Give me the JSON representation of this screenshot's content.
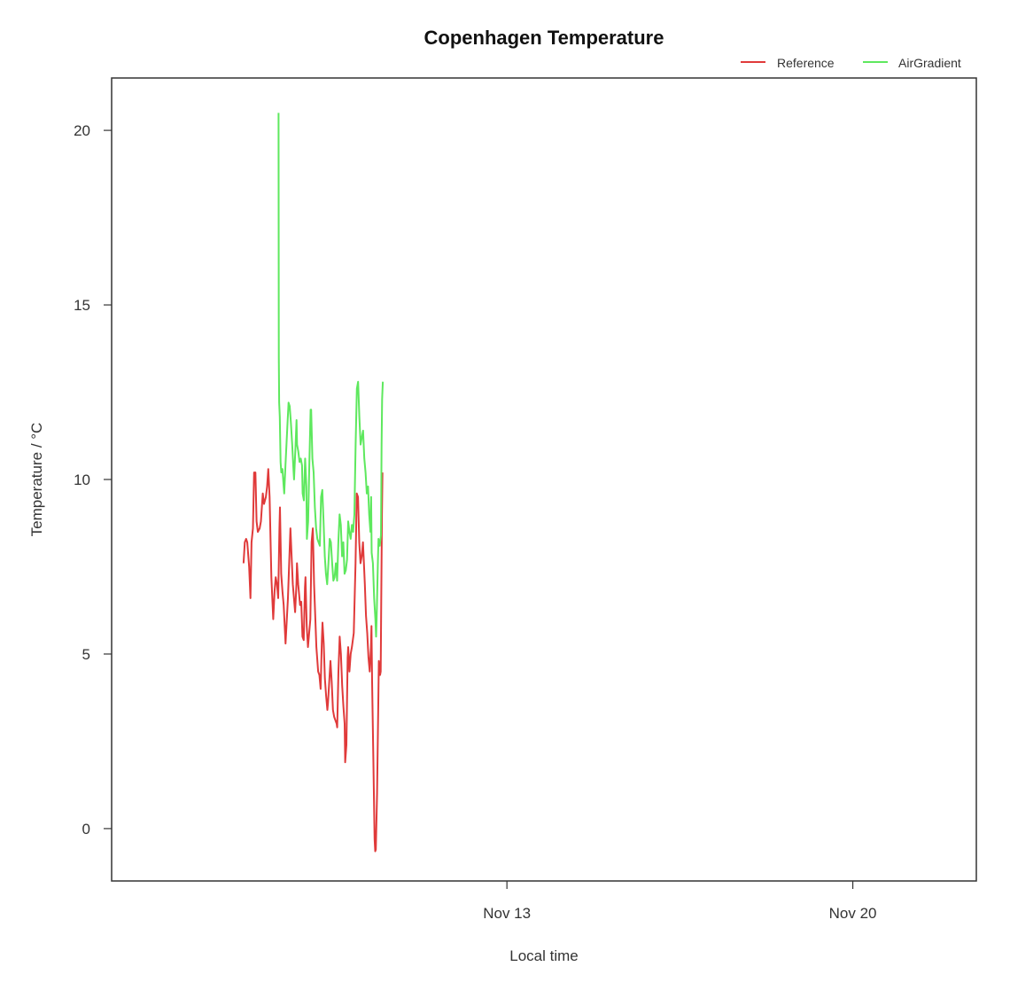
{
  "chart_data": {
    "type": "line",
    "title": "Copenhagen Temperature",
    "xlabel": "Local time",
    "ylabel": "Temperature / °C",
    "x_unit": "days",
    "x_range": [
      "2023-11-05T00:00",
      "2023-11-22T12:00"
    ],
    "ylim": [
      -1.5,
      21.5
    ],
    "yticks": [
      0,
      5,
      10,
      15,
      20
    ],
    "xticks": [
      {
        "label": "Nov 13",
        "x": "2023-11-13T00:00"
      },
      {
        "label": "Nov 20",
        "x": "2023-11-20T00:00"
      }
    ],
    "legend": {
      "position": "top-right"
    },
    "series": [
      {
        "name": "Reference",
        "color": "#e03a3a",
        "points": [
          [
            "2023-11-07T16:05",
            7.6
          ],
          [
            "2023-11-07T16:41",
            8.2
          ],
          [
            "2023-11-07T17:19",
            8.3
          ],
          [
            "2023-11-07T17:53",
            8.2
          ],
          [
            "2023-11-07T18:48",
            7.5
          ],
          [
            "2023-11-07T19:26",
            6.6
          ],
          [
            "2023-11-07T19:58",
            8.2
          ],
          [
            "2023-11-07T20:37",
            8.6
          ],
          [
            "2023-11-07T21:12",
            10.2
          ],
          [
            "2023-11-07T21:50",
            10.2
          ],
          [
            "2023-11-07T22:24",
            8.8
          ],
          [
            "2023-11-07T23:01",
            8.5
          ],
          [
            "2023-11-07T23:55",
            8.6
          ],
          [
            "2023-11-08T00:31",
            8.8
          ],
          [
            "2023-11-08T01:26",
            9.6
          ],
          [
            "2023-11-08T02:00",
            9.3
          ],
          [
            "2023-11-08T02:55",
            9.5
          ],
          [
            "2023-11-08T03:31",
            9.8
          ],
          [
            "2023-11-08T04:05",
            10.3
          ],
          [
            "2023-11-08T04:43",
            9.5
          ],
          [
            "2023-11-08T05:36",
            7.2
          ],
          [
            "2023-11-08T06:29",
            6.0
          ],
          [
            "2023-11-08T07:07",
            6.8
          ],
          [
            "2023-11-08T07:41",
            7.2
          ],
          [
            "2023-11-08T08:17",
            7.0
          ],
          [
            "2023-11-08T08:53",
            6.6
          ],
          [
            "2023-11-08T09:29",
            8.6
          ],
          [
            "2023-11-08T09:46",
            9.2
          ],
          [
            "2023-11-08T10:22",
            7.3
          ],
          [
            "2023-11-08T10:58",
            6.8
          ],
          [
            "2023-11-08T11:34",
            6.4
          ],
          [
            "2023-11-08T12:29",
            5.3
          ],
          [
            "2023-11-08T13:38",
            6.6
          ],
          [
            "2023-11-08T14:50",
            8.6
          ],
          [
            "2023-11-08T16:00",
            7.0
          ],
          [
            "2023-11-08T17:07",
            6.2
          ],
          [
            "2023-11-08T17:46",
            7.0
          ],
          [
            "2023-11-08T18:02",
            7.6
          ],
          [
            "2023-11-08T18:38",
            7.0
          ],
          [
            "2023-11-08T19:31",
            6.4
          ],
          [
            "2023-11-08T20:05",
            6.5
          ],
          [
            "2023-11-08T20:41",
            5.5
          ],
          [
            "2023-11-08T21:17",
            5.4
          ],
          [
            "2023-11-08T21:53",
            6.9
          ],
          [
            "2023-11-08T22:10",
            7.2
          ],
          [
            "2023-11-08T22:46",
            5.8
          ],
          [
            "2023-11-08T23:22",
            5.2
          ],
          [
            "2023-11-09T00:31",
            6.0
          ],
          [
            "2023-11-09T01:07",
            8.2
          ],
          [
            "2023-11-09T01:43",
            8.6
          ],
          [
            "2023-11-09T02:19",
            7.0
          ],
          [
            "2023-11-09T03:26",
            5.2
          ],
          [
            "2023-11-09T04:19",
            4.5
          ],
          [
            "2023-11-09T04:55",
            4.4
          ],
          [
            "2023-11-09T05:31",
            4.0
          ],
          [
            "2023-11-09T06:07",
            5.4
          ],
          [
            "2023-11-09T06:24",
            5.9
          ],
          [
            "2023-11-09T07:00",
            5.3
          ],
          [
            "2023-11-09T07:36",
            4.3
          ],
          [
            "2023-11-09T08:12",
            3.8
          ],
          [
            "2023-11-09T08:48",
            3.4
          ],
          [
            "2023-11-09T09:05",
            3.6
          ],
          [
            "2023-11-09T09:41",
            4.2
          ],
          [
            "2023-11-09T10:17",
            4.8
          ],
          [
            "2023-11-09T10:53",
            4.2
          ],
          [
            "2023-11-09T11:29",
            3.4
          ],
          [
            "2023-11-09T12:05",
            3.2
          ],
          [
            "2023-11-09T12:41",
            3.1
          ],
          [
            "2023-11-09T13:17",
            3.0
          ],
          [
            "2023-11-09T13:34",
            2.9
          ],
          [
            "2023-11-09T14:10",
            4.5
          ],
          [
            "2023-11-09T14:46",
            5.5
          ],
          [
            "2023-11-09T15:22",
            5.0
          ],
          [
            "2023-11-09T15:58",
            4.1
          ],
          [
            "2023-11-09T16:34",
            3.5
          ],
          [
            "2023-11-09T17:10",
            3.0
          ],
          [
            "2023-11-09T17:26",
            1.9
          ],
          [
            "2023-11-09T18:02",
            2.4
          ],
          [
            "2023-11-09T18:38",
            4.9
          ],
          [
            "2023-11-09T18:55",
            5.2
          ],
          [
            "2023-11-09T19:31",
            4.5
          ],
          [
            "2023-11-09T20:07",
            5.0
          ],
          [
            "2023-11-09T20:43",
            5.2
          ],
          [
            "2023-11-09T21:36",
            5.6
          ],
          [
            "2023-11-09T22:29",
            7.6
          ],
          [
            "2023-11-09T23:05",
            9.6
          ],
          [
            "2023-11-09T23:41",
            9.5
          ],
          [
            "2023-11-10T00:17",
            8.2
          ],
          [
            "2023-11-10T00:53",
            7.6
          ],
          [
            "2023-11-10T01:29",
            7.8
          ],
          [
            "2023-11-10T02:05",
            8.2
          ],
          [
            "2023-11-10T02:22",
            7.8
          ],
          [
            "2023-11-10T02:58",
            7.0
          ],
          [
            "2023-11-10T03:34",
            6.1
          ],
          [
            "2023-11-10T04:10",
            5.6
          ],
          [
            "2023-11-10T04:46",
            4.9
          ],
          [
            "2023-11-10T05:22",
            4.5
          ],
          [
            "2023-11-10T05:58",
            5.2
          ],
          [
            "2023-11-10T06:14",
            5.8
          ],
          [
            "2023-11-10T06:31",
            4.2
          ],
          [
            "2023-11-10T07:07",
            2.0
          ],
          [
            "2023-11-10T07:43",
            -0.3
          ],
          [
            "2023-11-10T08:02",
            -0.65
          ],
          [
            "2023-11-10T08:19",
            -0.6
          ],
          [
            "2023-11-10T08:55",
            1.0
          ],
          [
            "2023-11-10T09:31",
            3.6
          ],
          [
            "2023-11-10T09:48",
            4.8
          ],
          [
            "2023-11-10T10:24",
            4.4
          ],
          [
            "2023-11-10T10:41",
            4.5
          ],
          [
            "2023-11-10T10:58",
            6.5
          ],
          [
            "2023-11-10T11:17",
            9.0
          ],
          [
            "2023-11-10T11:34",
            10.2
          ]
        ]
      },
      {
        "name": "AirGradient",
        "color": "#5ee85e",
        "points": [
          [
            "2023-11-08T09:05",
            20.5
          ],
          [
            "2023-11-08T09:12",
            13.5
          ],
          [
            "2023-11-08T09:22",
            12.2
          ],
          [
            "2023-11-08T09:41",
            11.8
          ],
          [
            "2023-11-08T10:05",
            10.5
          ],
          [
            "2023-11-08T10:24",
            10.2
          ],
          [
            "2023-11-08T10:58",
            10.3
          ],
          [
            "2023-11-08T11:34",
            9.8
          ],
          [
            "2023-11-08T11:50",
            9.6
          ],
          [
            "2023-11-08T12:26",
            10.4
          ],
          [
            "2023-11-08T13:19",
            11.5
          ],
          [
            "2023-11-08T13:55",
            12.2
          ],
          [
            "2023-11-08T14:31",
            12.1
          ],
          [
            "2023-11-08T15:07",
            11.6
          ],
          [
            "2023-11-08T15:43",
            11.0
          ],
          [
            "2023-11-08T16:19",
            10.3
          ],
          [
            "2023-11-08T16:36",
            10.0
          ],
          [
            "2023-11-08T17:12",
            10.8
          ],
          [
            "2023-11-08T17:48",
            11.7
          ],
          [
            "2023-11-08T18:05",
            11.0
          ],
          [
            "2023-11-08T18:41",
            10.8
          ],
          [
            "2023-11-08T19:17",
            10.5
          ],
          [
            "2023-11-08T19:53",
            10.6
          ],
          [
            "2023-11-08T20:29",
            10.4
          ],
          [
            "2023-11-08T20:46",
            9.6
          ],
          [
            "2023-11-08T21:22",
            9.4
          ],
          [
            "2023-11-08T21:58",
            10.6
          ],
          [
            "2023-11-08T22:34",
            9.8
          ],
          [
            "2023-11-08T22:50",
            8.3
          ],
          [
            "2023-11-08T23:26",
            8.8
          ],
          [
            "2023-11-09T00:02",
            10.5
          ],
          [
            "2023-11-09T00:38",
            12.0
          ],
          [
            "2023-11-09T00:55",
            12.0
          ],
          [
            "2023-11-09T01:31",
            10.6
          ],
          [
            "2023-11-09T02:07",
            10.2
          ],
          [
            "2023-11-09T02:43",
            9.2
          ],
          [
            "2023-11-09T03:19",
            8.6
          ],
          [
            "2023-11-09T03:55",
            8.3
          ],
          [
            "2023-11-09T04:31",
            8.2
          ],
          [
            "2023-11-09T05:07",
            8.1
          ],
          [
            "2023-11-09T05:43",
            9.5
          ],
          [
            "2023-11-09T06:19",
            9.7
          ],
          [
            "2023-11-09T06:55",
            8.8
          ],
          [
            "2023-11-09T07:31",
            7.8
          ],
          [
            "2023-11-09T08:07",
            7.3
          ],
          [
            "2023-11-09T08:43",
            7.0
          ],
          [
            "2023-11-09T09:19",
            7.6
          ],
          [
            "2023-11-09T09:55",
            8.3
          ],
          [
            "2023-11-09T10:31",
            8.2
          ],
          [
            "2023-11-09T11:07",
            7.6
          ],
          [
            "2023-11-09T11:43",
            7.1
          ],
          [
            "2023-11-09T12:19",
            7.2
          ],
          [
            "2023-11-09T12:55",
            7.6
          ],
          [
            "2023-11-09T13:31",
            7.1
          ],
          [
            "2023-11-09T14:07",
            8.2
          ],
          [
            "2023-11-09T14:43",
            9.0
          ],
          [
            "2023-11-09T15:19",
            8.7
          ],
          [
            "2023-11-09T15:55",
            7.8
          ],
          [
            "2023-11-09T16:31",
            8.2
          ],
          [
            "2023-11-09T17:07",
            7.3
          ],
          [
            "2023-11-09T17:43",
            7.4
          ],
          [
            "2023-11-09T18:19",
            7.7
          ],
          [
            "2023-11-09T18:55",
            8.8
          ],
          [
            "2023-11-09T19:31",
            8.5
          ],
          [
            "2023-11-09T20:07",
            8.3
          ],
          [
            "2023-11-09T20:43",
            8.7
          ],
          [
            "2023-11-09T21:19",
            8.5
          ],
          [
            "2023-11-09T21:55",
            9.0
          ],
          [
            "2023-11-09T22:31",
            11.0
          ],
          [
            "2023-11-09T23:07",
            12.6
          ],
          [
            "2023-11-09T23:43",
            12.8
          ],
          [
            "2023-11-10T00:19",
            11.8
          ],
          [
            "2023-11-10T00:55",
            11.0
          ],
          [
            "2023-11-10T01:31",
            11.2
          ],
          [
            "2023-11-10T02:07",
            11.4
          ],
          [
            "2023-11-10T02:43",
            10.6
          ],
          [
            "2023-11-10T03:19",
            10.2
          ],
          [
            "2023-11-10T03:55",
            9.6
          ],
          [
            "2023-11-10T04:31",
            9.8
          ],
          [
            "2023-11-10T05:07",
            9.0
          ],
          [
            "2023-11-10T05:43",
            8.5
          ],
          [
            "2023-11-10T06:02",
            9.5
          ],
          [
            "2023-11-10T06:19",
            7.9
          ],
          [
            "2023-11-10T06:55",
            7.6
          ],
          [
            "2023-11-10T07:31",
            6.6
          ],
          [
            "2023-11-10T08:07",
            6.0
          ],
          [
            "2023-11-10T08:26",
            5.5
          ],
          [
            "2023-11-10T08:43",
            6.0
          ],
          [
            "2023-11-10T09:19",
            7.6
          ],
          [
            "2023-11-10T09:36",
            8.3
          ],
          [
            "2023-11-10T10:12",
            8.1
          ],
          [
            "2023-11-10T10:48",
            8.4
          ],
          [
            "2023-11-10T11:07",
            11.0
          ],
          [
            "2023-11-10T11:24",
            12.3
          ],
          [
            "2023-11-10T11:43",
            12.8
          ]
        ]
      }
    ]
  }
}
